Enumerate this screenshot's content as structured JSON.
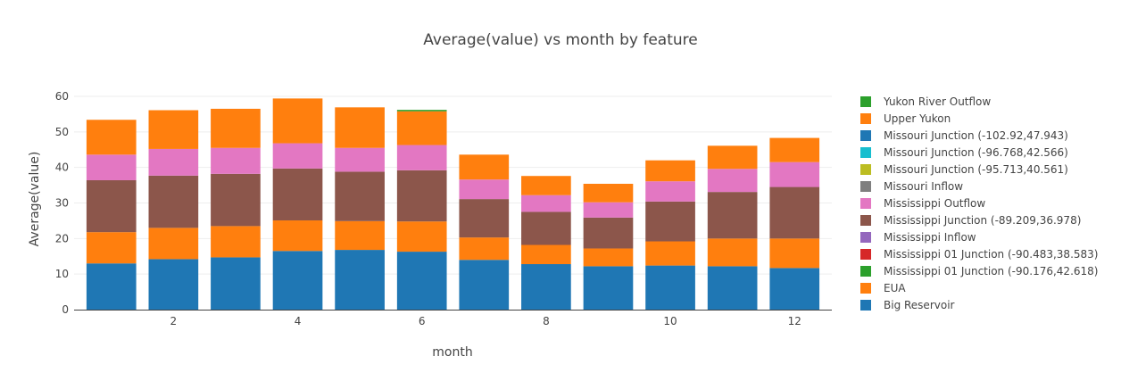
{
  "chart_data": {
    "type": "bar",
    "stacked": true,
    "title": "Average(value) vs month by feature",
    "xlabel": "month",
    "ylabel": "Average(value)",
    "x": [
      1,
      2,
      3,
      4,
      5,
      6,
      7,
      8,
      9,
      10,
      11,
      12
    ],
    "x_tick_labels": [
      "2",
      "4",
      "6",
      "8",
      "10",
      "12"
    ],
    "x_tick_values": [
      2,
      4,
      6,
      8,
      10,
      12
    ],
    "xlim": [
      0.4,
      12.6
    ],
    "ylim": [
      0,
      61.5
    ],
    "y_ticks": [
      0,
      10,
      20,
      30,
      40,
      50,
      60
    ],
    "grid": true,
    "legend_position": "right",
    "series": [
      {
        "name": "Big Reservoir",
        "color": "#1f77b4",
        "values": [
          13.0,
          14.2,
          14.7,
          16.5,
          16.8,
          16.3,
          14.0,
          12.8,
          12.2,
          12.4,
          12.2,
          11.7
        ]
      },
      {
        "name": "EUA",
        "color": "#ff7f0e",
        "values": [
          8.8,
          8.8,
          8.8,
          8.6,
          8.1,
          8.5,
          6.3,
          5.4,
          5.0,
          6.8,
          7.8,
          8.3
        ]
      },
      {
        "name": "Mississippi 01 Junction (-90.176,42.618)",
        "color": "#2ca02c",
        "values": [
          0,
          0,
          0,
          0,
          0,
          0,
          0,
          0,
          0,
          0,
          0,
          0
        ]
      },
      {
        "name": "Mississippi 01 Junction (-90.483,38.583)",
        "color": "#d62728",
        "values": [
          0,
          0,
          0,
          0,
          0,
          0,
          0,
          0,
          0,
          0,
          0,
          0
        ]
      },
      {
        "name": "Mississippi Inflow",
        "color": "#9467bd",
        "values": [
          0,
          0,
          0,
          0,
          0,
          0,
          0,
          0,
          0,
          0,
          0,
          0
        ]
      },
      {
        "name": "Mississippi Junction (-89.209,36.978)",
        "color": "#8c564b",
        "values": [
          14.6,
          14.7,
          14.7,
          14.6,
          13.9,
          14.4,
          10.8,
          9.3,
          8.7,
          11.2,
          13.1,
          14.5
        ]
      },
      {
        "name": "Mississippi Outflow",
        "color": "#e377c2",
        "values": [
          7.2,
          7.5,
          7.3,
          7.1,
          6.7,
          7.1,
          5.5,
          4.7,
          4.3,
          5.7,
          6.5,
          7.0
        ]
      },
      {
        "name": "Missouri Inflow",
        "color": "#7f7f7f",
        "values": [
          0,
          0,
          0,
          0,
          0,
          0,
          0,
          0,
          0,
          0,
          0,
          0
        ]
      },
      {
        "name": "Missouri Junction (-95.713,40.561)",
        "color": "#bcbd22",
        "values": [
          0,
          0,
          0,
          0,
          0,
          0,
          0,
          0,
          0,
          0,
          0,
          0
        ]
      },
      {
        "name": "Missouri Junction (-96.768,42.566)",
        "color": "#17becf",
        "values": [
          0,
          0,
          0,
          0,
          0,
          0,
          0,
          0,
          0,
          0,
          0,
          0
        ]
      },
      {
        "name": "Missouri Junction (-102.92,47.943)",
        "color": "#1f77b4",
        "values": [
          0,
          0,
          0,
          0,
          0,
          0,
          0,
          0,
          0,
          0,
          0,
          0
        ]
      },
      {
        "name": "Upper Yukon",
        "color": "#ff7f0e",
        "values": [
          9.8,
          10.9,
          11.0,
          12.6,
          11.4,
          9.5,
          7.0,
          5.4,
          5.2,
          5.9,
          6.5,
          6.8
        ]
      },
      {
        "name": "Yukon River Outflow",
        "color": "#2ca02c",
        "values": [
          0,
          0,
          0,
          0,
          0,
          0.4,
          0,
          0,
          0,
          0,
          0,
          0
        ]
      }
    ]
  }
}
